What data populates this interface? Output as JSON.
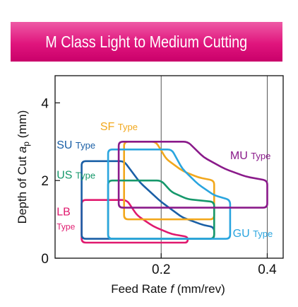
{
  "chart_data": {
    "type": "area",
    "title": "M Class Light to Medium Cutting",
    "xlabel": {
      "prefix": "Feed Rate ",
      "symbol": "f",
      "suffix": " (mm/rev)"
    },
    "ylabel": {
      "prefix": "Depth of Cut ",
      "symbol": "a",
      "subscript": "p",
      "suffix": " (mm)"
    },
    "xlim": [
      0,
      0.43
    ],
    "ylim": [
      0,
      4.7
    ],
    "x_ticks": [
      {
        "value": 0.2,
        "label": "0.2"
      },
      {
        "value": 0.4,
        "label": "0.4"
      }
    ],
    "y_ticks": [
      {
        "value": 0,
        "label": "0"
      },
      {
        "value": 2,
        "label": "2"
      },
      {
        "value": 4,
        "label": "4"
      }
    ],
    "grid": "vertical",
    "grid_x": [
      0.2,
      0.4
    ],
    "series": [
      {
        "name": "LB",
        "suffix": "Type",
        "color": "#e0196e",
        "f_min": 0.05,
        "f_max": 0.25,
        "ap_min": 0.4,
        "ap_max": 1.5,
        "curve": [
          [
            0.05,
            1.5
          ],
          [
            0.135,
            1.5
          ],
          [
            0.155,
            1.1
          ],
          [
            0.185,
            0.82
          ],
          [
            0.22,
            0.62
          ],
          [
            0.25,
            0.55
          ]
        ]
      },
      {
        "name": "SU",
        "suffix": "Type",
        "color": "#1a5fa6",
        "f_min": 0.05,
        "f_max": 0.3,
        "ap_min": 0.5,
        "ap_max": 2.5,
        "curve": [
          [
            0.05,
            2.5
          ],
          [
            0.13,
            2.5
          ],
          [
            0.16,
            1.95
          ],
          [
            0.2,
            1.45
          ],
          [
            0.24,
            1.05
          ],
          [
            0.28,
            0.85
          ],
          [
            0.3,
            0.8
          ]
        ]
      },
      {
        "name": "SF",
        "suffix": "Type",
        "color": "#f2a81d",
        "f_min": 0.13,
        "f_max": 0.3,
        "ap_min": 1.0,
        "ap_max": 3.0,
        "curve": [
          [
            0.13,
            3.0
          ],
          [
            0.19,
            3.0
          ],
          [
            0.21,
            2.55
          ],
          [
            0.24,
            2.25
          ],
          [
            0.27,
            2.08
          ],
          [
            0.3,
            2.0
          ]
        ]
      },
      {
        "name": "US",
        "suffix": "Type",
        "color": "#16986b",
        "f_min": 0.1,
        "f_max": 0.3,
        "ap_min": 0.5,
        "ap_max": 2.0,
        "curve": [
          [
            0.1,
            2.0
          ],
          [
            0.2,
            2.0
          ],
          [
            0.22,
            1.7
          ],
          [
            0.25,
            1.52
          ],
          [
            0.3,
            1.45
          ]
        ]
      },
      {
        "name": "GU",
        "suffix": "Type",
        "color": "#2aa5df",
        "f_min": 0.1,
        "f_max": 0.33,
        "ap_min": 0.5,
        "ap_max": 2.8,
        "curve": [
          [
            0.1,
            2.8
          ],
          [
            0.22,
            2.8
          ],
          [
            0.24,
            2.3
          ],
          [
            0.27,
            1.9
          ],
          [
            0.3,
            1.62
          ],
          [
            0.33,
            1.5
          ]
        ]
      },
      {
        "name": "MU",
        "suffix": "Type",
        "color": "#8a1a8a",
        "f_min": 0.12,
        "f_max": 0.4,
        "ap_min": 1.3,
        "ap_max": 3.0,
        "curve": [
          [
            0.12,
            3.0
          ],
          [
            0.25,
            3.0
          ],
          [
            0.28,
            2.6
          ],
          [
            0.32,
            2.3
          ],
          [
            0.36,
            2.1
          ],
          [
            0.4,
            2.0
          ]
        ]
      }
    ],
    "labels": [
      {
        "series": "SF",
        "x": 0.085,
        "y": 3.3,
        "layout": "inline"
      },
      {
        "series": "SU",
        "x": 0.003,
        "y": 2.82,
        "layout": "inline"
      },
      {
        "series": "US",
        "x": 0.003,
        "y": 2.05,
        "layout": "inline"
      },
      {
        "series": "LB",
        "x": 0.003,
        "y": 1.1,
        "layout": "stacked"
      },
      {
        "series": "GU",
        "x": 0.335,
        "y": 0.55,
        "layout": "inline"
      },
      {
        "series": "MU",
        "x": 0.33,
        "y": 2.55,
        "layout": "inline"
      }
    ]
  }
}
